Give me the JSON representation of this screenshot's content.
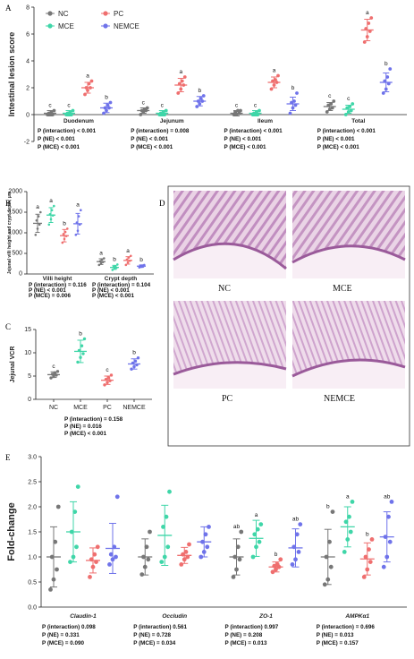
{
  "colors": {
    "NC": "#777777",
    "MCE": "#3fd6a8",
    "PC": "#ef6f6f",
    "NEMCE": "#6f73ea"
  },
  "panel_letters": [
    "A",
    "B",
    "C",
    "D",
    "E"
  ],
  "image_labels": [
    "NC",
    "MCE",
    "PC",
    "NEMCE"
  ],
  "chart_data": [
    {
      "id": "A",
      "type": "scatter",
      "ylabel": "Intestinal lesion score",
      "ylim": [
        -2,
        8
      ],
      "yticks": [
        -2,
        0,
        2,
        4,
        6,
        8
      ],
      "legend": [
        "NC",
        "PC",
        "MCE",
        "NEMCE"
      ],
      "groups": [
        {
          "name": "Duodenum",
          "stats": [
            "P (interaction) < 0.001",
            "P (NE) < 0.001",
            "P (MCE) < 0.001"
          ],
          "series": [
            {
              "name": "NC",
              "mean": 0.1,
              "sd": 0.2,
              "sig": "c",
              "points": [
                0,
                0,
                0,
                0.1,
                0.2,
                0.3
              ]
            },
            {
              "name": "MCE",
              "mean": 0.1,
              "sd": 0.2,
              "sig": "c",
              "points": [
                0,
                0,
                0,
                0.1,
                0.2,
                0.3
              ]
            },
            {
              "name": "PC",
              "mean": 2.0,
              "sd": 0.4,
              "sig": "a",
              "points": [
                1.5,
                1.8,
                2.0,
                2.0,
                2.3,
                2.5
              ]
            },
            {
              "name": "NEMCE",
              "mean": 0.5,
              "sd": 0.35,
              "sig": "b",
              "points": [
                0.1,
                0.3,
                0.5,
                0.5,
                0.7,
                0.9
              ]
            }
          ]
        },
        {
          "name": "Jejunum",
          "stats": [
            "P (interaction) = 0.008",
            "P (NE) < 0.001",
            "P (MCE) < 0.001"
          ],
          "series": [
            {
              "name": "NC",
              "mean": 0.3,
              "sd": 0.2,
              "sig": "c",
              "points": [
                0,
                0.2,
                0.3,
                0.3,
                0.4,
                0.5
              ]
            },
            {
              "name": "MCE",
              "mean": 0.1,
              "sd": 0.2,
              "sig": "c",
              "points": [
                0,
                0,
                0,
                0.1,
                0.2,
                0.3
              ]
            },
            {
              "name": "PC",
              "mean": 2.2,
              "sd": 0.5,
              "sig": "a",
              "points": [
                1.6,
                1.9,
                2.2,
                2.3,
                2.5,
                2.8
              ]
            },
            {
              "name": "NEMCE",
              "mean": 1.0,
              "sd": 0.35,
              "sig": "b",
              "points": [
                0.6,
                0.8,
                1.0,
                1.0,
                1.2,
                1.4
              ]
            }
          ]
        },
        {
          "name": "Ileum",
          "stats": [
            "P (interaction) < 0.001",
            "P (NE) < 0.001",
            "P (MCE) < 0.001"
          ],
          "series": [
            {
              "name": "NC",
              "mean": 0.1,
              "sd": 0.2,
              "sig": "c",
              "points": [
                0,
                0,
                0.1,
                0.2,
                0.3,
                0.3
              ]
            },
            {
              "name": "MCE",
              "mean": 0.1,
              "sd": 0.2,
              "sig": "c",
              "points": [
                0,
                0,
                0,
                0.1,
                0.2,
                0.3
              ]
            },
            {
              "name": "PC",
              "mean": 2.4,
              "sd": 0.4,
              "sig": "a",
              "points": [
                1.9,
                2.2,
                2.4,
                2.5,
                2.6,
                2.9
              ]
            },
            {
              "name": "NEMCE",
              "mean": 0.8,
              "sd": 0.5,
              "sig": "b",
              "points": [
                0.1,
                0.5,
                0.7,
                0.9,
                1.0,
                1.6
              ]
            }
          ]
        },
        {
          "name": "Total",
          "stats": [
            "P (interaction) < 0.001",
            "P (NE) < 0.001",
            "P (MCE) < 0.001"
          ],
          "series": [
            {
              "name": "NC",
              "mean": 0.6,
              "sd": 0.3,
              "sig": "c",
              "points": [
                0.2,
                0.4,
                0.5,
                0.7,
                0.8,
                1.0
              ]
            },
            {
              "name": "MCE",
              "mean": 0.4,
              "sd": 0.3,
              "sig": "c",
              "points": [
                0,
                0.2,
                0.3,
                0.5,
                0.6,
                0.8
              ]
            },
            {
              "name": "PC",
              "mean": 6.3,
              "sd": 0.8,
              "sig": "a",
              "points": [
                5.4,
                5.8,
                6.2,
                6.4,
                6.8,
                7.2
              ]
            },
            {
              "name": "NEMCE",
              "mean": 2.4,
              "sd": 0.7,
              "sig": "b",
              "points": [
                1.6,
                1.9,
                2.3,
                2.5,
                2.8,
                3.4
              ]
            }
          ]
        }
      ]
    },
    {
      "id": "B",
      "type": "scatter",
      "ylabel": "Jejunal villi height and crypt depth, μm",
      "ylim": [
        0,
        2000
      ],
      "yticks": [
        0,
        500,
        1000,
        1500,
        2000
      ],
      "groups": [
        {
          "name": "Villi height",
          "stats": [
            "P (interaction) = 0.116",
            "P (NE) < 0.001",
            "P (MCE) = 0.006"
          ],
          "series": [
            {
              "name": "NC",
              "mean": 1230,
              "sd": 220,
              "sig": "a",
              "points": [
                950,
                1100,
                1200,
                1300,
                1400,
                1500
              ]
            },
            {
              "name": "MCE",
              "mean": 1430,
              "sd": 180,
              "sig": "a",
              "points": [
                1200,
                1330,
                1420,
                1450,
                1550,
                1650
              ]
            },
            {
              "name": "PC",
              "mean": 930,
              "sd": 150,
              "sig": "b",
              "points": [
                760,
                850,
                920,
                970,
                1020,
                1100
              ]
            },
            {
              "name": "NEMCE",
              "mean": 1220,
              "sd": 250,
              "sig": "a",
              "points": [
                950,
                1050,
                1200,
                1250,
                1400,
                1550
              ]
            }
          ]
        },
        {
          "name": "Crypt depth",
          "stats": [
            "P (interaction) = 0.104",
            "P (NE) < 0.001",
            "P (MCE) < 0.001"
          ],
          "series": [
            {
              "name": "NC",
              "mean": 300,
              "sd": 70,
              "sig": "a",
              "points": [
                220,
                260,
                290,
                310,
                350,
                380
              ]
            },
            {
              "name": "MCE",
              "mean": 160,
              "sd": 50,
              "sig": "b",
              "points": [
                100,
                130,
                150,
                170,
                190,
                230
              ]
            },
            {
              "name": "PC",
              "mean": 330,
              "sd": 90,
              "sig": "a",
              "points": [
                220,
                280,
                320,
                350,
                400,
                440
              ]
            },
            {
              "name": "NEMCE",
              "mean": 190,
              "sd": 30,
              "sig": "b",
              "points": [
                160,
                175,
                185,
                195,
                205,
                220
              ]
            }
          ]
        }
      ]
    },
    {
      "id": "C",
      "type": "scatter",
      "ylabel": "Jejunal VCR",
      "ylim": [
        0,
        15
      ],
      "yticks": [
        0,
        5,
        10,
        15
      ],
      "categories": [
        "NC",
        "MCE",
        "PC",
        "NEMCE"
      ],
      "stats": [
        "P (interaction) = 0.158",
        "P (NE) = 0.016",
        "P (MCE) < 0.001"
      ],
      "series": [
        {
          "name": "NC",
          "mean": 5.3,
          "sd": 0.6,
          "sig": "c",
          "points": [
            4.6,
            4.9,
            5.2,
            5.4,
            5.7,
            6.0
          ]
        },
        {
          "name": "MCE",
          "mean": 10.3,
          "sd": 2.4,
          "sig": "b",
          "points": [
            8.0,
            9.0,
            9.8,
            10.5,
            11.5,
            13.0
          ]
        },
        {
          "name": "PC",
          "mean": 4.1,
          "sd": 0.9,
          "sig": "c",
          "points": [
            3.1,
            3.6,
            4.0,
            4.3,
            4.6,
            5.2
          ]
        },
        {
          "name": "NEMCE",
          "mean": 7.6,
          "sd": 1.1,
          "sig": "b",
          "points": [
            6.5,
            7.0,
            7.4,
            7.8,
            8.2,
            8.9
          ]
        }
      ]
    },
    {
      "id": "E",
      "type": "scatter",
      "ylabel": "Fold-change",
      "ylim": [
        0,
        3.0
      ],
      "yticks": [
        "0.0",
        "0.5",
        "1.0",
        "1.5",
        "2.0",
        "2.5",
        "3.0"
      ],
      "groups": [
        {
          "name": "Claudin-1",
          "stats": [
            "P (interaction)     0.098",
            "P (NE) = 0.331",
            "P (MCE) = 0.090"
          ],
          "series": [
            {
              "name": "NC",
              "mean": 1.0,
              "sd": 0.6,
              "sig": "",
              "points": [
                0.35,
                0.55,
                0.75,
                1.0,
                1.3,
                2.0
              ]
            },
            {
              "name": "MCE",
              "mean": 1.5,
              "sd": 0.6,
              "sig": "",
              "points": [
                0.9,
                1.0,
                1.2,
                1.5,
                1.9,
                2.4
              ]
            },
            {
              "name": "PC",
              "mean": 0.93,
              "sd": 0.25,
              "sig": "",
              "points": [
                0.6,
                0.8,
                0.9,
                0.95,
                1.05,
                1.2
              ]
            },
            {
              "name": "NEMCE",
              "mean": 1.17,
              "sd": 0.5,
              "sig": "",
              "points": [
                0.85,
                0.95,
                1.0,
                1.05,
                1.2,
                2.2
              ]
            }
          ]
        },
        {
          "name": "Occludin",
          "stats": [
            "P (interaction)     0.561",
            "P (NE) = 0.728",
            "P (MCE) = 0.034"
          ],
          "series": [
            {
              "name": "NC",
              "mean": 1.0,
              "sd": 0.36,
              "sig": "",
              "points": [
                0.65,
                0.8,
                0.95,
                1.0,
                1.2,
                1.5
              ]
            },
            {
              "name": "MCE",
              "mean": 1.43,
              "sd": 0.6,
              "sig": "",
              "points": [
                0.9,
                1.0,
                1.2,
                1.6,
                1.8,
                2.3
              ]
            },
            {
              "name": "PC",
              "mean": 1.03,
              "sd": 0.16,
              "sig": "",
              "points": [
                0.85,
                0.95,
                1.0,
                1.05,
                1.1,
                1.25
              ]
            },
            {
              "name": "NEMCE",
              "mean": 1.3,
              "sd": 0.3,
              "sig": "",
              "points": [
                1.0,
                1.1,
                1.2,
                1.3,
                1.45,
                1.6
              ]
            }
          ]
        },
        {
          "name": "ZO-1",
          "stats": [
            "P (interaction)     0.997",
            "P (NE) = 0.208",
            "P (MCE) = 0.013"
          ],
          "series": [
            {
              "name": "NC",
              "mean": 1.0,
              "sd": 0.36,
              "sig": "ab",
              "points": [
                0.6,
                0.75,
                0.95,
                1.0,
                1.2,
                1.5
              ]
            },
            {
              "name": "MCE",
              "mean": 1.37,
              "sd": 0.36,
              "sig": "a",
              "points": [
                1.0,
                1.2,
                1.3,
                1.45,
                1.55,
                1.65
              ]
            },
            {
              "name": "PC",
              "mean": 0.8,
              "sd": 0.1,
              "sig": "b",
              "points": [
                0.7,
                0.75,
                0.8,
                0.82,
                0.85,
                0.95
              ]
            },
            {
              "name": "NEMCE",
              "mean": 1.18,
              "sd": 0.38,
              "sig": "ab",
              "points": [
                0.85,
                0.95,
                1.1,
                1.2,
                1.45,
                1.65
              ]
            }
          ]
        },
        {
          "name": "AMPKα1",
          "stats": [
            "P (interaction) = 0.696",
            "P (NE) = 0.013",
            "P (MCE) = 0.157"
          ],
          "series": [
            {
              "name": "NC",
              "mean": 1.0,
              "sd": 0.55,
              "sig": "b",
              "points": [
                0.45,
                0.55,
                0.8,
                1.0,
                1.3,
                1.9
              ]
            },
            {
              "name": "MCE",
              "mean": 1.6,
              "sd": 0.4,
              "sig": "a",
              "points": [
                1.1,
                1.35,
                1.5,
                1.7,
                1.8,
                2.1
              ]
            },
            {
              "name": "PC",
              "mean": 0.96,
              "sd": 0.32,
              "sig": "b",
              "points": [
                0.6,
                0.75,
                0.9,
                1.0,
                1.15,
                1.35
              ]
            },
            {
              "name": "NEMCE",
              "mean": 1.4,
              "sd": 0.5,
              "sig": "ab",
              "points": [
                0.8,
                1.0,
                1.3,
                1.4,
                1.8,
                2.1
              ]
            }
          ]
        }
      ]
    }
  ]
}
